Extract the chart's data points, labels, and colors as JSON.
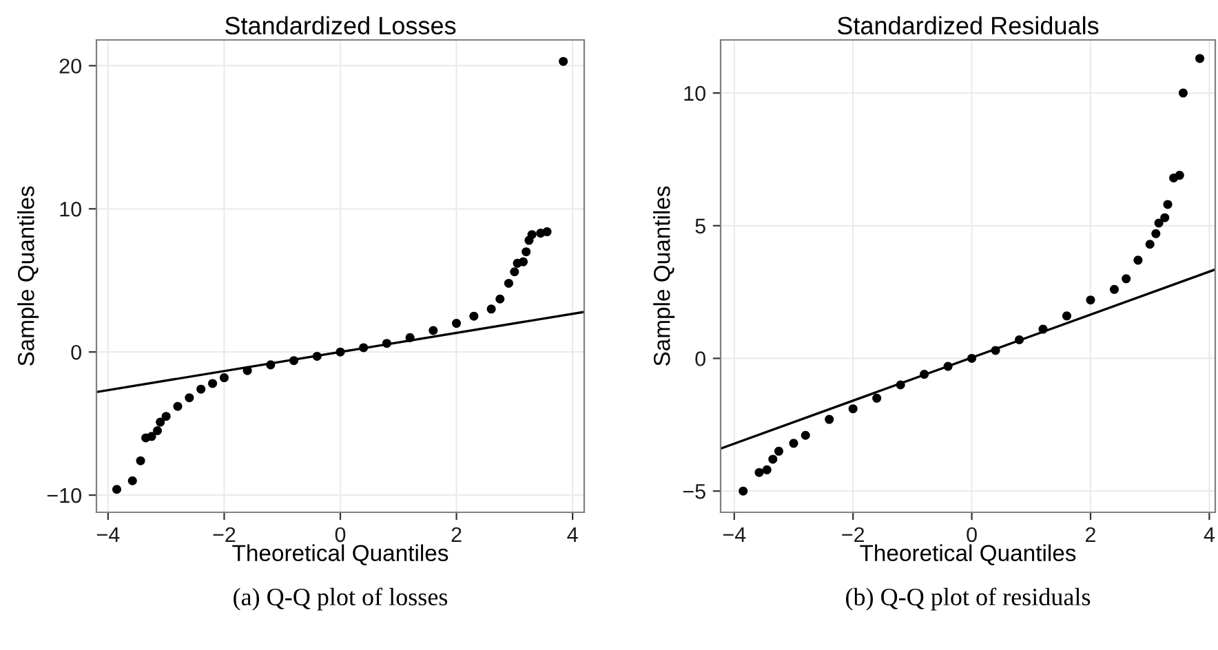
{
  "chart_data": [
    {
      "type": "scatter",
      "title": "Standardized Losses",
      "xlabel": "Theoretical Quantiles",
      "ylabel": "Sample Quantiles",
      "xlim": [
        -4.2,
        4.2
      ],
      "ylim": [
        -11.2,
        21.8
      ],
      "xticks": [
        -4,
        -2,
        0,
        2,
        4
      ],
      "yticks": [
        -10,
        0,
        10,
        20
      ],
      "grid": true,
      "annotations": [
        "(a) Q-Q plot of losses"
      ],
      "series": [
        {
          "marker": "circle",
          "color": "#000000",
          "x": [
            -3.85,
            -3.58,
            -3.44,
            -3.35,
            -3.25,
            -3.15,
            -3.1,
            -3.0,
            -2.8,
            -2.6,
            -2.4,
            -2.2,
            -2.0,
            -1.6,
            -1.2,
            -0.8,
            -0.4,
            0,
            0.4,
            0.8,
            1.2,
            1.6,
            2.0,
            2.3,
            2.6,
            2.75,
            2.9,
            3.0,
            3.05,
            3.15,
            3.2,
            3.25,
            3.3,
            3.45,
            3.56,
            3.84
          ],
          "values": [
            -9.6,
            -9.0,
            -7.6,
            -6.0,
            -5.9,
            -5.5,
            -4.9,
            -4.5,
            -3.8,
            -3.2,
            -2.6,
            -2.2,
            -1.8,
            -1.3,
            -0.9,
            -0.6,
            -0.3,
            0,
            0.3,
            0.6,
            1.0,
            1.5,
            2.0,
            2.5,
            3.0,
            3.7,
            4.8,
            5.6,
            6.2,
            6.3,
            7.0,
            7.8,
            8.2,
            8.3,
            8.4,
            20.3
          ]
        },
        {
          "type": "line",
          "color": "#000000",
          "x": [
            -4.2,
            4.2
          ],
          "values": [
            -2.8,
            2.8
          ]
        }
      ]
    },
    {
      "type": "scatter",
      "title": "Standardized Residuals",
      "xlabel": "Theoretical Quantiles",
      "ylabel": "Sample Quantiles",
      "xlim": [
        -4.23,
        4.1
      ],
      "ylim": [
        -5.8,
        12.0
      ],
      "xticks": [
        -4,
        -2,
        0,
        2,
        4
      ],
      "yticks": [
        -5,
        0,
        5,
        10
      ],
      "grid": true,
      "annotations": [
        "(b) Q-Q plot of residuals"
      ],
      "series": [
        {
          "marker": "circle",
          "color": "#000000",
          "x": [
            -3.85,
            -3.58,
            -3.45,
            -3.35,
            -3.25,
            -3.0,
            -2.8,
            -2.4,
            -2.0,
            -1.6,
            -1.2,
            -0.8,
            -0.4,
            0,
            0.4,
            0.8,
            1.2,
            1.6,
            2.0,
            2.4,
            2.6,
            2.8,
            3.0,
            3.1,
            3.15,
            3.25,
            3.3,
            3.4,
            3.5,
            3.56,
            3.84
          ],
          "values": [
            -5.0,
            -4.3,
            -4.2,
            -3.8,
            -3.5,
            -3.2,
            -2.9,
            -2.3,
            -1.9,
            -1.5,
            -1.0,
            -0.6,
            -0.3,
            0,
            0.3,
            0.7,
            1.1,
            1.6,
            2.2,
            2.6,
            3.0,
            3.7,
            4.3,
            4.7,
            5.1,
            5.3,
            5.8,
            6.8,
            6.9,
            10.0,
            11.3
          ]
        },
        {
          "type": "line",
          "color": "#000000",
          "x": [
            -4.23,
            4.1
          ],
          "values": [
            -3.4,
            3.35
          ]
        }
      ]
    }
  ]
}
